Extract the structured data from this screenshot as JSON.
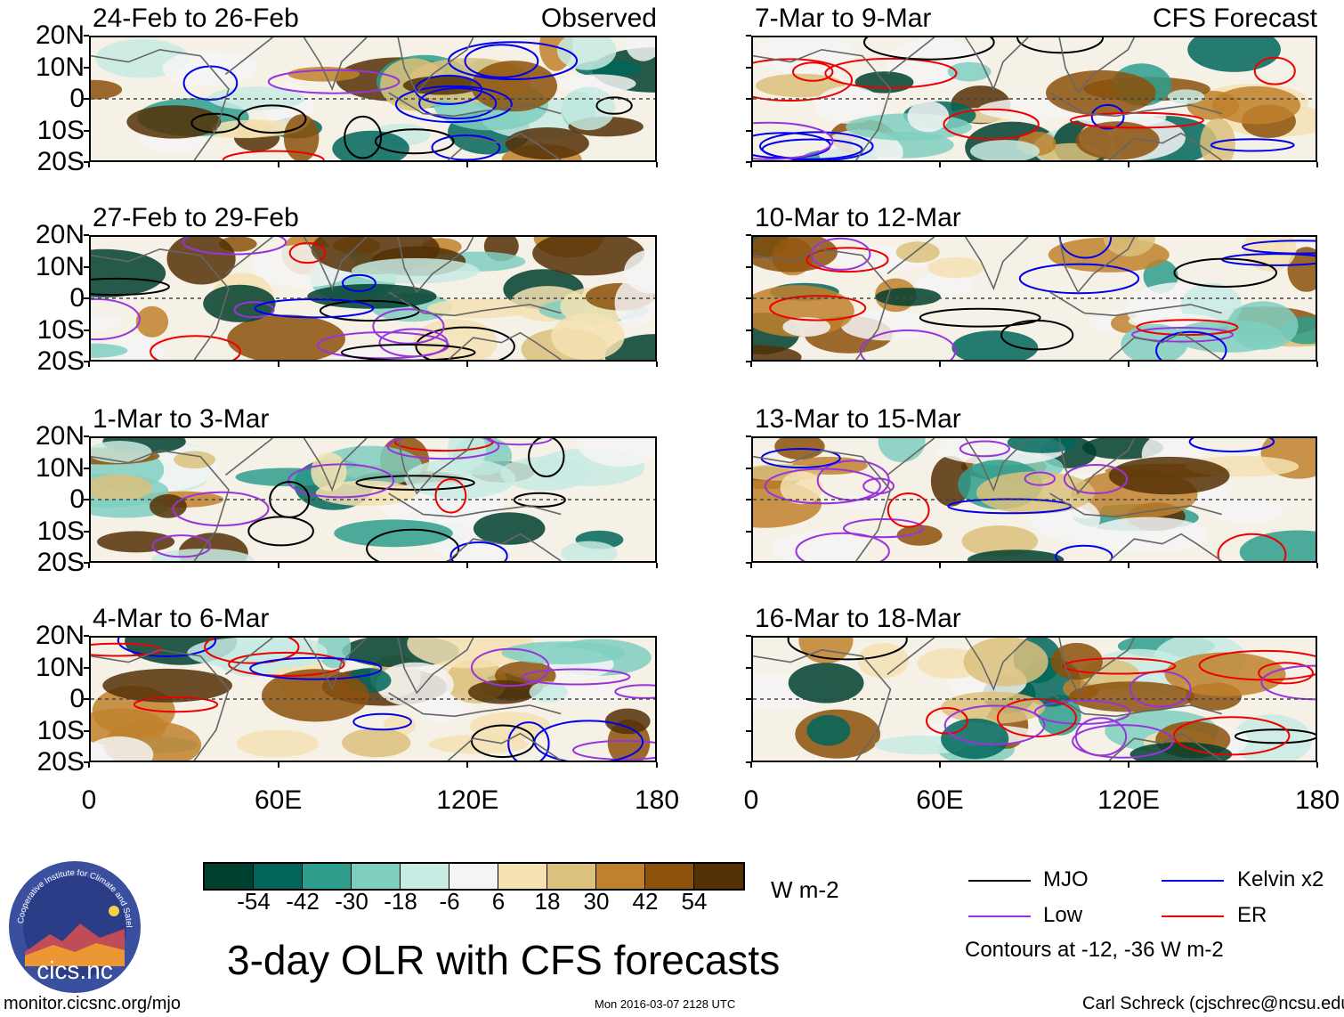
{
  "panel_labels": {
    "source_left": "Observed",
    "source_right": "CFS Forecast"
  },
  "panels": [
    {
      "title": "24-Feb to 26-Feb",
      "anom_seed": 1
    },
    {
      "title": "27-Feb to 29-Feb",
      "anom_seed": 2
    },
    {
      "title": "1-Mar to 3-Mar",
      "anom_seed": 3
    },
    {
      "title": "4-Mar to 6-Mar",
      "anom_seed": 4
    },
    {
      "title": "7-Mar to 9-Mar",
      "anom_seed": 5
    },
    {
      "title": "10-Mar to 12-Mar",
      "anom_seed": 6
    },
    {
      "title": "13-Mar to 15-Mar",
      "anom_seed": 7
    },
    {
      "title": "16-Mar to 18-Mar",
      "anom_seed": 8
    }
  ],
  "lat_labels": [
    "20N",
    "10N",
    "0",
    "10S",
    "20S"
  ],
  "lon_labels": [
    "0",
    "60E",
    "120E",
    "180"
  ],
  "colorbar": {
    "colors": [
      "#00402e",
      "#00665a",
      "#2e9d8c",
      "#7fcfbf",
      "#c8ebe3",
      "#f5f5f5",
      "#f4e2b3",
      "#dcc17d",
      "#bf812d",
      "#8c510a",
      "#543005"
    ],
    "labels": [
      "-54",
      "-42",
      "-30",
      "-18",
      "-6",
      "6",
      "18",
      "30",
      "42",
      "54"
    ],
    "units": "W m-2"
  },
  "title": "3-day OLR with CFS forecasts",
  "legend": {
    "items": [
      {
        "label": "MJO",
        "color": "#000000"
      },
      {
        "label": "Kelvin x2",
        "color": "#0000ee"
      },
      {
        "label": "Low",
        "color": "#9933dd"
      },
      {
        "label": "ER",
        "color": "#ee0000"
      }
    ],
    "note": "Contours at -12, -36 W m-2"
  },
  "logo_text": "cics.nc",
  "logo_ring_text": "Cooperative Institute for Climate and Satellites",
  "footer": {
    "url": "monitor.cicsnc.org/mjo",
    "timestamp": "Mon 2016-03-07 2128 UTC",
    "author": "Carl Schreck (cjschrec@ncsu.edu)"
  }
}
